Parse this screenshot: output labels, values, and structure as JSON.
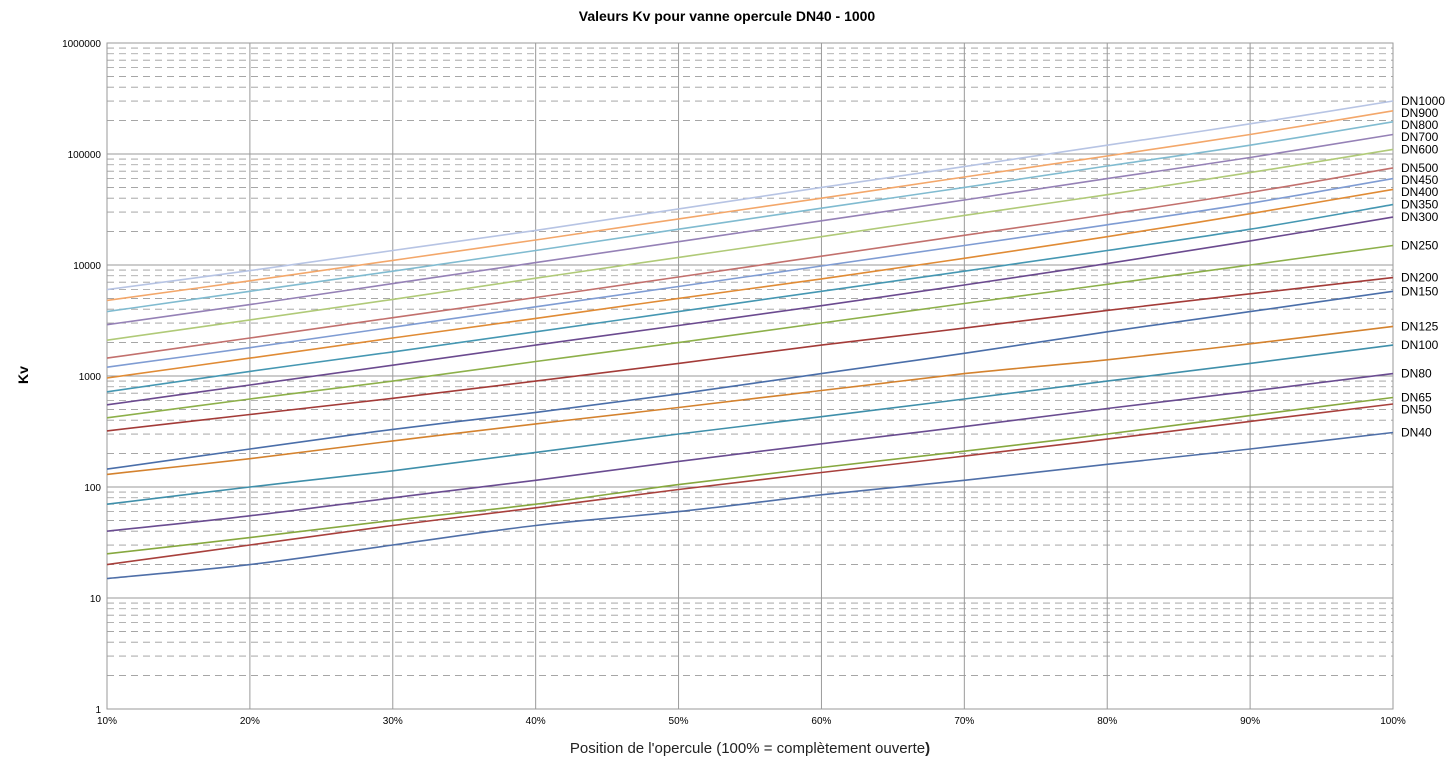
{
  "chart_data": {
    "type": "line",
    "title": "Valeurs Kv pour vanne opercule DN40 - 1000",
    "ylabel": "Kv",
    "xlabel": "Position de l'opercule (100% = complètement ouverte",
    "xlabel_suffix": ")",
    "x": [
      10,
      20,
      30,
      40,
      50,
      60,
      70,
      80,
      90,
      100
    ],
    "x_tick_labels": [
      "10%",
      "20%",
      "30%",
      "40%",
      "50%",
      "60%",
      "70%",
      "80%",
      "90%",
      "100%"
    ],
    "xlim": [
      10,
      100
    ],
    "y_scale": "log",
    "ylim": [
      1,
      1000000
    ],
    "y_tick_values": [
      1,
      10,
      100,
      1000,
      10000,
      100000,
      1000000
    ],
    "y_tick_labels": [
      "1",
      "10",
      "100",
      "1000",
      "10000",
      "100000",
      "1000000"
    ],
    "grid": true,
    "legend": "labels at right end of each line",
    "series": [
      {
        "name": "DN40",
        "color": "#4f6fa8",
        "values": [
          15,
          20,
          30,
          45,
          60,
          85,
          115,
          160,
          220,
          310
        ]
      },
      {
        "name": "DN50",
        "color": "#a8403c",
        "values": [
          20,
          30,
          45,
          65,
          95,
          135,
          190,
          270,
          390,
          560
        ]
      },
      {
        "name": "DN65",
        "color": "#86a83f",
        "values": [
          25,
          35,
          50,
          70,
          105,
          150,
          210,
          300,
          440,
          640
        ]
      },
      {
        "name": "DN80",
        "color": "#6a4c91",
        "values": [
          40,
          55,
          80,
          115,
          170,
          245,
          350,
          510,
          730,
          1050
        ]
      },
      {
        "name": "DN100",
        "color": "#3f8faa",
        "values": [
          70,
          100,
          140,
          205,
          300,
          430,
          620,
          900,
          1300,
          1900
        ]
      },
      {
        "name": "DN125",
        "color": "#d4822e",
        "values": [
          130,
          180,
          260,
          370,
          520,
          740,
          1050,
          1400,
          1950,
          2800
        ]
      },
      {
        "name": "DN150",
        "color": "#4a6ea9",
        "values": [
          145,
          220,
          330,
          470,
          690,
          1050,
          1600,
          2500,
          3800,
          5800
        ]
      },
      {
        "name": "DN200",
        "color": "#a33b38",
        "values": [
          320,
          450,
          630,
          900,
          1300,
          1900,
          2700,
          3900,
          5500,
          7700
        ]
      },
      {
        "name": "DN250",
        "color": "#8db04a",
        "values": [
          420,
          620,
          900,
          1350,
          2000,
          3000,
          4500,
          6700,
          10000,
          15000
        ]
      },
      {
        "name": "DN300",
        "color": "#6b4a8f",
        "values": [
          550,
          830,
          1250,
          1900,
          2850,
          4300,
          6600,
          10300,
          16500,
          27000
        ]
      },
      {
        "name": "DN350",
        "color": "#4597b2",
        "values": [
          720,
          1100,
          1650,
          2500,
          3800,
          5800,
          8800,
          13500,
          21000,
          35000
        ]
      },
      {
        "name": "DN400",
        "color": "#e08b35",
        "values": [
          960,
          1450,
          2200,
          3300,
          5000,
          7500,
          11500,
          18000,
          29000,
          48000
        ]
      },
      {
        "name": "DN450",
        "color": "#7f9cd3",
        "values": [
          1200,
          1800,
          2750,
          4200,
          6400,
          9800,
          15000,
          23000,
          36000,
          60000
        ]
      },
      {
        "name": "DN500",
        "color": "#c2706d",
        "values": [
          1450,
          2200,
          3350,
          5100,
          7800,
          12000,
          18500,
          28500,
          45000,
          75000
        ]
      },
      {
        "name": "DN600",
        "color": "#b0ca78",
        "values": [
          2100,
          3200,
          4900,
          7600,
          11700,
          18000,
          28000,
          43000,
          68000,
          110000
        ]
      },
      {
        "name": "DN700",
        "color": "#9581b6",
        "values": [
          2900,
          4400,
          6800,
          10500,
          16200,
          25000,
          38500,
          60000,
          93000,
          150000
        ]
      },
      {
        "name": "DN800",
        "color": "#80bbd0",
        "values": [
          3800,
          5800,
          8800,
          13500,
          21000,
          32500,
          50000,
          78000,
          120000,
          195000
        ]
      },
      {
        "name": "DN900",
        "color": "#f3a76a",
        "values": [
          4800,
          7200,
          11000,
          16800,
          26000,
          40000,
          62000,
          96000,
          150000,
          245000
        ]
      },
      {
        "name": "DN1000",
        "color": "#b7c4e4",
        "values": [
          6000,
          8900,
          13500,
          20500,
          32000,
          50000,
          77000,
          120000,
          187000,
          300000
        ]
      }
    ]
  }
}
